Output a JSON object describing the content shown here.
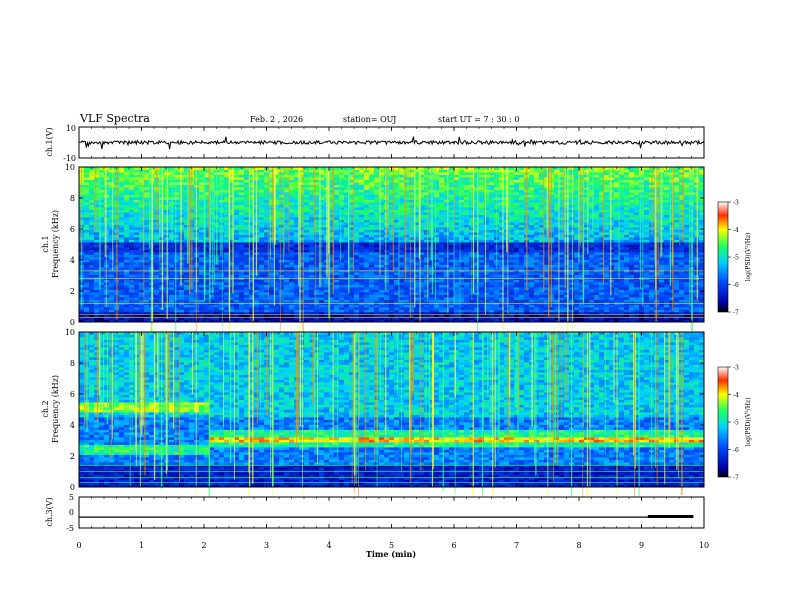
{
  "header": {
    "title": "VLF Spectra",
    "date": "Feb. 2 , 2026",
    "station": "station= OUJ",
    "start_ut": "start UT = 7 : 30 : 0"
  },
  "chart_data": {
    "type": "heatmap",
    "xlabel": "Time (min)",
    "x_ticks": [
      "0",
      "1",
      "2",
      "3",
      "4",
      "5",
      "6",
      "7",
      "8",
      "9",
      "10"
    ],
    "xlim": [
      0,
      10
    ],
    "panels": [
      {
        "name": "ch1-waveform",
        "ylabel": "ch.1(V)",
        "y_ticks": [
          "10",
          "-10"
        ],
        "ylim": [
          -10,
          10
        ],
        "trace_level": 0
      },
      {
        "name": "ch1-spectrogram",
        "ylabel_line1": "ch.1",
        "ylabel_line2": "Frequency (kHz)",
        "y_ticks": [
          "0",
          "2",
          "4",
          "6",
          "8",
          "10"
        ],
        "ylim": [
          0,
          10
        ],
        "colorbar": {
          "label": "log(PSD)(V²/Hz)",
          "ticks": [
            "-3",
            "-4",
            "-5",
            "-6",
            "-7"
          ],
          "range": [
            -7,
            -3
          ]
        }
      },
      {
        "name": "ch2-spectrogram",
        "ylabel_line1": "ch.2",
        "ylabel_line2": "Frequency (kHz)",
        "y_ticks": [
          "0",
          "2",
          "4",
          "6",
          "8",
          "10"
        ],
        "ylim": [
          0,
          10
        ],
        "colorbar": {
          "label": "log(PSD)(V²/Hz)",
          "ticks": [
            "-3",
            "-4",
            "-5",
            "-6",
            "-7"
          ],
          "range": [
            -7,
            -3
          ]
        }
      },
      {
        "name": "ch3-waveform",
        "ylabel": "ch.3(V)",
        "y_ticks": [
          "5",
          "0",
          "-5"
        ],
        "ylim": [
          -5,
          5
        ],
        "trace_level": -1.5,
        "trace_level_late": -1.3,
        "late_start_min": 9.1
      }
    ],
    "features": {
      "ch1_noise_bands_khz": [
        0.3,
        0.5,
        1.2,
        2.8,
        3.3
      ],
      "ch2_segment_change_min": 2.1,
      "ch2_early_bands_khz": [
        2.4,
        5.2
      ],
      "ch2_late_bands_khz": [
        2.9,
        3.3
      ]
    }
  }
}
